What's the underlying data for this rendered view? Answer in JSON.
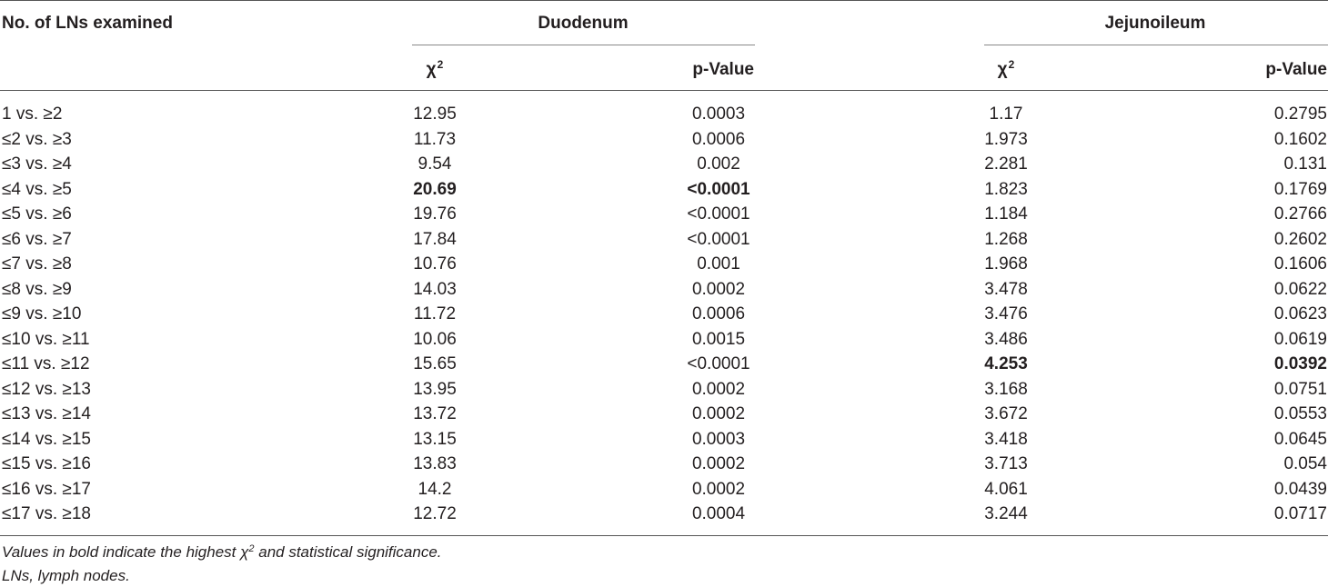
{
  "header": {
    "row_label": "No. of LNs examined",
    "group1": "Duodenum",
    "group2": "Jejunoileum",
    "chi": "χ",
    "chi_sup": "2",
    "pvalue": "p-Value"
  },
  "rows": [
    {
      "label": "1 vs. ≥2",
      "d_chi": "12.95",
      "d_p": "0.0003",
      "j_chi": "1.17",
      "j_p": "0.2795"
    },
    {
      "label": "≤2 vs. ≥3",
      "d_chi": "11.73",
      "d_p": "0.0006",
      "j_chi": "1.973",
      "j_p": "0.1602"
    },
    {
      "label": "≤3 vs. ≥4",
      "d_chi": "9.54",
      "d_p": "0.002",
      "j_chi": "2.281",
      "j_p": "0.131"
    },
    {
      "label": "≤4 vs. ≥5",
      "d_chi": "20.69",
      "d_p": "<0.0001",
      "j_chi": "1.823",
      "j_p": "0.1769",
      "bold": [
        "d_chi",
        "d_p"
      ]
    },
    {
      "label": "≤5 vs. ≥6",
      "d_chi": "19.76",
      "d_p": "<0.0001",
      "j_chi": "1.184",
      "j_p": "0.2766"
    },
    {
      "label": "≤6 vs. ≥7",
      "d_chi": "17.84",
      "d_p": "<0.0001",
      "j_chi": "1.268",
      "j_p": "0.2602"
    },
    {
      "label": "≤7 vs. ≥8",
      "d_chi": "10.76",
      "d_p": "0.001",
      "j_chi": "1.968",
      "j_p": "0.1606"
    },
    {
      "label": "≤8 vs. ≥9",
      "d_chi": "14.03",
      "d_p": "0.0002",
      "j_chi": "3.478",
      "j_p": "0.0622"
    },
    {
      "label": "≤9 vs. ≥10",
      "d_chi": "11.72",
      "d_p": "0.0006",
      "j_chi": "3.476",
      "j_p": "0.0623"
    },
    {
      "label": "≤10 vs. ≥11",
      "d_chi": "10.06",
      "d_p": "0.0015",
      "j_chi": "3.486",
      "j_p": "0.0619"
    },
    {
      "label": "≤11 vs. ≥12",
      "d_chi": "15.65",
      "d_p": "<0.0001",
      "j_chi": "4.253",
      "j_p": "0.0392",
      "bold": [
        "j_chi",
        "j_p"
      ]
    },
    {
      "label": "≤12 vs. ≥13",
      "d_chi": "13.95",
      "d_p": "0.0002",
      "j_chi": "3.168",
      "j_p": "0.0751"
    },
    {
      "label": "≤13 vs. ≥14",
      "d_chi": "13.72",
      "d_p": "0.0002",
      "j_chi": "3.672",
      "j_p": "0.0553"
    },
    {
      "label": "≤14 vs. ≥15",
      "d_chi": "13.15",
      "d_p": "0.0003",
      "j_chi": "3.418",
      "j_p": "0.0645"
    },
    {
      "label": "≤15 vs. ≥16",
      "d_chi": "13.83",
      "d_p": "0.0002",
      "j_chi": "3.713",
      "j_p": "0.054"
    },
    {
      "label": "≤16 vs. ≥17",
      "d_chi": "14.2",
      "d_p": "0.0002",
      "j_chi": "4.061",
      "j_p": "0.0439"
    },
    {
      "label": "≤17 vs. ≥18",
      "d_chi": "12.72",
      "d_p": "0.0004",
      "j_chi": "3.244",
      "j_p": "0.0717"
    }
  ],
  "footnotes": {
    "note1_pre": "Values in bold indicate the highest ",
    "note1_chi": "χ",
    "note1_sup": "2",
    "note1_post": " and statistical significance.",
    "note2": "LNs, lymph nodes."
  }
}
